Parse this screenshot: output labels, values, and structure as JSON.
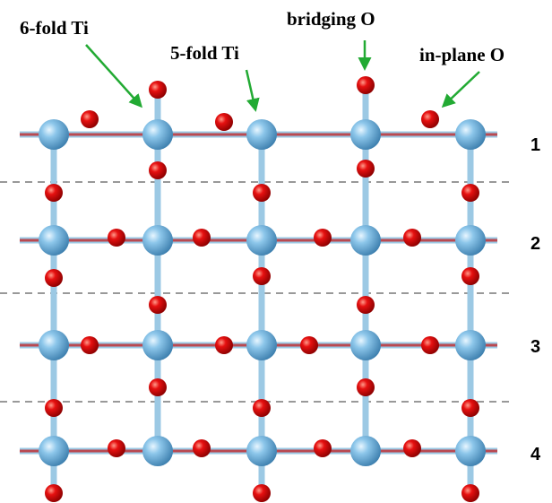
{
  "labels": [
    "6-fold Ti",
    "5-fold Ti",
    "bridging O",
    "in-plane O"
  ],
  "layers": [
    "1",
    "2",
    "3",
    "4"
  ]
}
